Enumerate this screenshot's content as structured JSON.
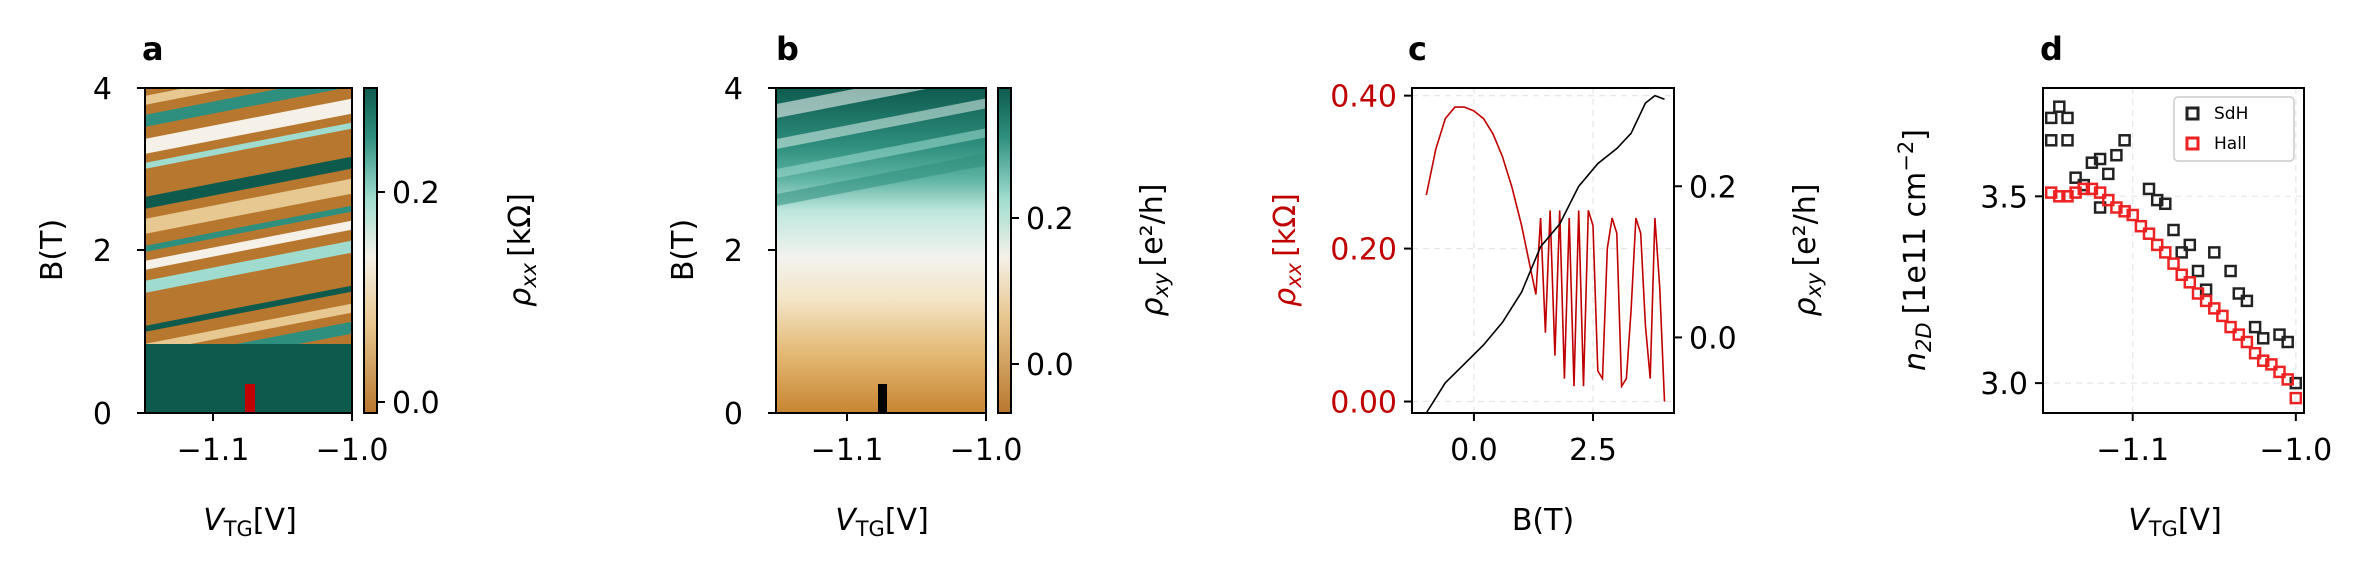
{
  "colors": {
    "brown": "#b8772e",
    "teal": "#0e5b4e",
    "red_axis": "#c00000",
    "hall_red": "#ee2222",
    "sdh_black": "#222222"
  },
  "chart_data": [
    {
      "panel": "a",
      "type": "heatmap",
      "xlabel_main": "V",
      "xlabel_sub": "TG",
      "xlabel_unit": "[V]",
      "ylabel": "B(T)",
      "xlim": [
        -1.15,
        -1.0
      ],
      "ylim": [
        0,
        4
      ],
      "xticks": [
        -1.1,
        -1.0
      ],
      "xtick_labels": [
        "−1.1",
        "−1.0"
      ],
      "yticks": [
        0,
        2,
        4
      ],
      "ytick_labels": [
        "0",
        "2",
        "4"
      ],
      "colorbar": {
        "label_main": "ρ",
        "label_sub": "xx",
        "label_unit": "[kΩ]",
        "range": [
          -0.01,
          0.29
        ],
        "ticks": [
          0.0,
          0.2
        ],
        "tick_labels": [
          "0.0",
          "0.2"
        ]
      },
      "marker": {
        "x": -1.075,
        "y0": 0.05,
        "y1": 0.35,
        "color": "#c00000"
      }
    },
    {
      "panel": "b",
      "type": "heatmap",
      "xlabel_main": "V",
      "xlabel_sub": "TG",
      "xlabel_unit": "[V]",
      "ylabel": "B(T)",
      "xlim": [
        -1.15,
        -1.0
      ],
      "ylim": [
        0,
        4
      ],
      "xticks": [
        -1.1,
        -1.0
      ],
      "xtick_labels": [
        "−1.1",
        "−1.0"
      ],
      "yticks": [
        0,
        2,
        4
      ],
      "ytick_labels": [
        "0",
        "2",
        "4"
      ],
      "colorbar": {
        "label_main": "ρ",
        "label_sub": "xy",
        "label_unit": "[e²/h]",
        "range": [
          -0.08,
          0.38
        ],
        "ticks": [
          0.0,
          0.2
        ],
        "tick_labels": [
          "0.0",
          "0.2"
        ]
      },
      "marker": {
        "x": -1.075,
        "y0": 0.05,
        "y1": 0.35,
        "color": "#000000"
      }
    },
    {
      "panel": "c",
      "type": "line",
      "xlabel": "B(T)",
      "xlim": [
        -1.3,
        4.2
      ],
      "ylim_left": [
        -0.015,
        0.41
      ],
      "ylim_right": [
        -0.1,
        0.33
      ],
      "xticks": [
        0.0,
        2.5
      ],
      "xtick_labels": [
        "0.0",
        "2.5"
      ],
      "yticks_left": [
        0.0,
        0.2,
        0.4
      ],
      "ytick_left_labels": [
        "0.00",
        "0.20",
        "0.40"
      ],
      "yticks_right": [
        0.0,
        0.2
      ],
      "ytick_right_labels": [
        "0.0",
        "0.2"
      ],
      "ylabel_left_main": "ρ",
      "ylabel_left_sub": "xx",
      "ylabel_left_unit": "[kΩ]",
      "ylabel_right_main": "ρ",
      "ylabel_right_sub": "xy",
      "ylabel_right_unit": "[e²/h]",
      "series": [
        {
          "name": "rho_xx",
          "axis": "left",
          "color": "#c00000",
          "x": [
            -1.0,
            -0.8,
            -0.6,
            -0.4,
            -0.2,
            0.0,
            0.2,
            0.4,
            0.6,
            0.8,
            1.0,
            1.2,
            1.3,
            1.4,
            1.5,
            1.6,
            1.7,
            1.8,
            1.9,
            2.0,
            2.1,
            2.2,
            2.3,
            2.4,
            2.5,
            2.6,
            2.7,
            2.8,
            2.9,
            3.0,
            3.1,
            3.2,
            3.3,
            3.4,
            3.5,
            3.6,
            3.7,
            3.8,
            3.9,
            4.0
          ],
          "y": [
            0.27,
            0.33,
            0.37,
            0.385,
            0.385,
            0.38,
            0.37,
            0.35,
            0.32,
            0.28,
            0.23,
            0.17,
            0.14,
            0.24,
            0.09,
            0.25,
            0.06,
            0.25,
            0.03,
            0.24,
            0.02,
            0.25,
            0.02,
            0.25,
            0.23,
            0.04,
            0.03,
            0.2,
            0.24,
            0.22,
            0.02,
            0.03,
            0.12,
            0.24,
            0.22,
            0.1,
            0.03,
            0.24,
            0.15,
            0.0
          ]
        },
        {
          "name": "rho_xy",
          "axis": "right",
          "color": "#000000",
          "x": [
            -1.0,
            -0.6,
            -0.2,
            0.2,
            0.6,
            1.0,
            1.4,
            1.8,
            2.2,
            2.6,
            3.0,
            3.3,
            3.6,
            3.8,
            4.0
          ],
          "y": [
            -0.1,
            -0.06,
            -0.035,
            -0.01,
            0.02,
            0.06,
            0.12,
            0.15,
            0.2,
            0.23,
            0.25,
            0.27,
            0.31,
            0.32,
            0.315
          ]
        }
      ]
    },
    {
      "panel": "d",
      "type": "scatter",
      "xlabel_main": "V",
      "xlabel_sub": "TG",
      "xlabel_unit": "[V]",
      "ylabel_main": "n",
      "ylabel_sub": "2D",
      "ylabel_unit": "[1e11 cm",
      "ylabel_sup": "−2",
      "ylabel_close": "]",
      "xlim": [
        -1.155,
        -0.995
      ],
      "ylim": [
        2.92,
        3.79
      ],
      "xticks": [
        -1.1,
        -1.0
      ],
      "xtick_labels": [
        "−1.1",
        "−1.0"
      ],
      "yticks": [
        3.0,
        3.5
      ],
      "ytick_labels": [
        "3.0",
        "3.5"
      ],
      "legend_position": "top-right",
      "series": [
        {
          "name": "SdH",
          "color": "#222222",
          "x": [
            -1.15,
            -1.145,
            -1.14,
            -1.15,
            -1.14,
            -1.135,
            -1.13,
            -1.12,
            -1.115,
            -1.105,
            -1.11,
            -1.125,
            -1.12,
            -1.09,
            -1.085,
            -1.08,
            -1.075,
            -1.07,
            -1.065,
            -1.06,
            -1.055,
            -1.05,
            -1.04,
            -1.035,
            -1.03,
            -1.025,
            -1.02,
            -1.01,
            -1.005,
            -1.0
          ],
          "y": [
            3.71,
            3.74,
            3.71,
            3.65,
            3.65,
            3.55,
            3.53,
            3.6,
            3.56,
            3.65,
            3.61,
            3.59,
            3.47,
            3.52,
            3.49,
            3.48,
            3.41,
            3.35,
            3.37,
            3.3,
            3.25,
            3.35,
            3.3,
            3.24,
            3.22,
            3.15,
            3.12,
            3.13,
            3.11,
            3.0
          ]
        },
        {
          "name": "Hall",
          "color": "#ee2222",
          "x": [
            -1.15,
            -1.145,
            -1.14,
            -1.135,
            -1.13,
            -1.125,
            -1.12,
            -1.115,
            -1.11,
            -1.105,
            -1.1,
            -1.095,
            -1.09,
            -1.085,
            -1.08,
            -1.075,
            -1.07,
            -1.065,
            -1.06,
            -1.055,
            -1.05,
            -1.045,
            -1.04,
            -1.035,
            -1.03,
            -1.025,
            -1.02,
            -1.015,
            -1.01,
            -1.005,
            -1.0
          ],
          "y": [
            3.51,
            3.5,
            3.5,
            3.51,
            3.52,
            3.52,
            3.51,
            3.49,
            3.47,
            3.46,
            3.45,
            3.42,
            3.4,
            3.37,
            3.35,
            3.32,
            3.29,
            3.27,
            3.24,
            3.22,
            3.2,
            3.18,
            3.15,
            3.13,
            3.11,
            3.08,
            3.06,
            3.05,
            3.03,
            3.01,
            2.96
          ]
        }
      ]
    }
  ]
}
